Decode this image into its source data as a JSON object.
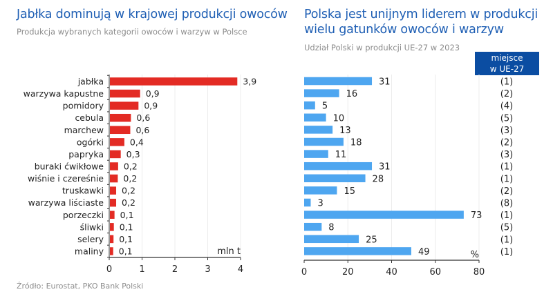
{
  "left_panel": {
    "title": "Jabłka dominują w krajowej produkcji owoców",
    "subtitle": "Produkcja wybranych kategorii owoców i warzyw w Polsce"
  },
  "right_panel": {
    "title_line1": "Polska jest unijnym liderem w produkcji",
    "title_line2": "wielu gatunków owoców i warzyw",
    "subtitle": "Udział Polski w produkcji UE-27 w 2023",
    "rank_header_line1": "miejsce",
    "rank_header_line2": "w UE-27"
  },
  "source": "Źródło: Eurostat, PKO Bank Polski",
  "colors": {
    "left_bars": "#e32b24",
    "right_bars": "#4ea6f0",
    "title": "#1f5fb4",
    "badge": "#0b4da2"
  },
  "chart_data": [
    {
      "type": "bar",
      "orientation": "horizontal",
      "title": "Jabłka dominują w krajowej produkcji owoców",
      "subtitle": "Produkcja wybranych kategorii owoców i warzyw w Polsce",
      "categories": [
        "jabłka",
        "warzywa kapustne",
        "pomidory",
        "cebula",
        "marchew",
        "ogórki",
        "papryka",
        "buraki ćwikłowe",
        "wiśnie i czereśnie",
        "truskawki",
        "warzywa liściaste",
        "porzeczki",
        "śliwki",
        "selery",
        "maliny"
      ],
      "values": [
        3.9,
        0.9,
        0.9,
        0.6,
        0.6,
        0.4,
        0.3,
        0.2,
        0.2,
        0.2,
        0.2,
        0.1,
        0.1,
        0.1,
        0.1
      ],
      "value_labels": [
        "3,9",
        "0,9",
        "0,9",
        "0,6",
        "0,6",
        "0,4",
        "0,3",
        "0,2",
        "0,2",
        "0,2",
        "0,2",
        "0,1",
        "0,1",
        "0,1",
        "0,1"
      ],
      "plot_values": [
        3.88,
        0.92,
        0.87,
        0.64,
        0.62,
        0.44,
        0.33,
        0.25,
        0.24,
        0.19,
        0.19,
        0.14,
        0.12,
        0.11,
        0.1
      ],
      "xlim": [
        0,
        4
      ],
      "xticks": [
        "0",
        "1",
        "2",
        "3",
        "4"
      ],
      "unit_label": "mln t",
      "grid": true
    },
    {
      "type": "bar",
      "orientation": "horizontal",
      "title": "Polska jest unijnym liderem w produkcji wielu gatunków owoców i warzyw",
      "subtitle": "Udział Polski w produkcji UE-27 w 2023",
      "categories": [
        "jabłka",
        "warzywa kapustne",
        "pomidory",
        "cebula",
        "marchew",
        "ogórki",
        "papryka",
        "buraki ćwikłowe",
        "wiśnie i czereśnie",
        "truskawki",
        "warzywa liściaste",
        "porzeczki",
        "śliwki",
        "selery",
        "maliny"
      ],
      "values": [
        31,
        16,
        5,
        10,
        13,
        18,
        11,
        31,
        28,
        15,
        3,
        73,
        8,
        25,
        49
      ],
      "ranks": [
        "(1)",
        "(2)",
        "(4)",
        "(5)",
        "(3)",
        "(2)",
        "(3)",
        "(1)",
        "(1)",
        "(2)",
        "(8)",
        "(1)",
        "(5)",
        "(1)",
        "(1)"
      ],
      "xlim": [
        0,
        80
      ],
      "xticks": [
        "0",
        "20",
        "40",
        "60",
        "80"
      ],
      "unit_label": "%",
      "grid": true
    }
  ]
}
